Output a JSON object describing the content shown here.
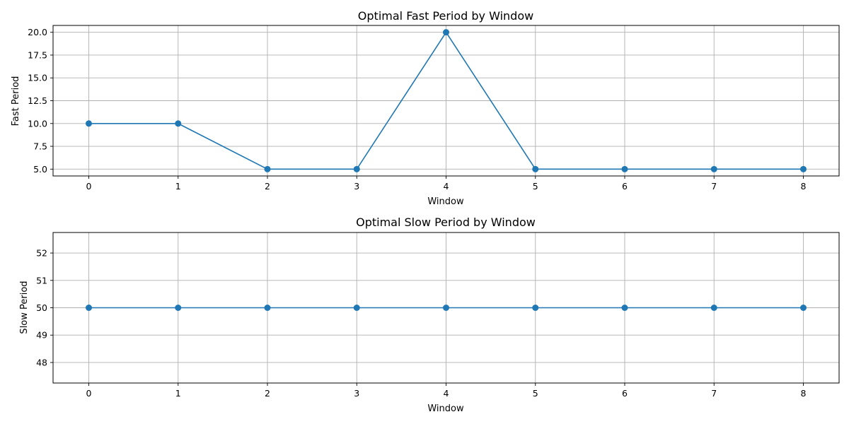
{
  "chart_data": [
    {
      "type": "line",
      "title": "Optimal Fast Period by Window",
      "xlabel": "Window",
      "ylabel": "Fast Period",
      "x": [
        0,
        1,
        2,
        3,
        4,
        5,
        6,
        7,
        8
      ],
      "series": [
        {
          "values": [
            10,
            10,
            5,
            5,
            20,
            5,
            5,
            5,
            5
          ],
          "color": "#1f77b4",
          "marker": "circle"
        }
      ],
      "xlim": [
        -0.4,
        8.4
      ],
      "ylim": [
        4.25,
        20.75
      ],
      "xticks": [
        0,
        1,
        2,
        3,
        4,
        5,
        6,
        7,
        8
      ],
      "xtick_labels": [
        "0",
        "1",
        "2",
        "3",
        "4",
        "5",
        "6",
        "7",
        "8"
      ],
      "yticks": [
        5.0,
        7.5,
        10.0,
        12.5,
        15.0,
        17.5,
        20.0
      ],
      "ytick_labels": [
        "5.0",
        "7.5",
        "10.0",
        "12.5",
        "15.0",
        "17.5",
        "20.0"
      ],
      "grid": true
    },
    {
      "type": "line",
      "title": "Optimal Slow Period by Window",
      "xlabel": "Window",
      "ylabel": "Slow Period",
      "x": [
        0,
        1,
        2,
        3,
        4,
        5,
        6,
        7,
        8
      ],
      "series": [
        {
          "values": [
            50,
            50,
            50,
            50,
            50,
            50,
            50,
            50,
            50
          ],
          "color": "#1f77b4",
          "marker": "circle"
        }
      ],
      "xlim": [
        -0.4,
        8.4
      ],
      "ylim": [
        47.25,
        52.75
      ],
      "xticks": [
        0,
        1,
        2,
        3,
        4,
        5,
        6,
        7,
        8
      ],
      "xtick_labels": [
        "0",
        "1",
        "2",
        "3",
        "4",
        "5",
        "6",
        "7",
        "8"
      ],
      "yticks": [
        48,
        49,
        50,
        51,
        52
      ],
      "ytick_labels": [
        "48",
        "49",
        "50",
        "51",
        "52"
      ],
      "grid": true
    }
  ]
}
